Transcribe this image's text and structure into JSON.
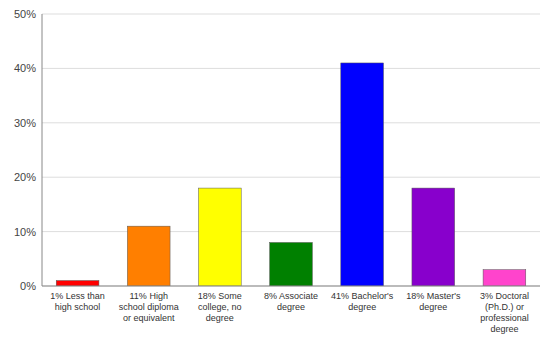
{
  "chart_data": {
    "type": "bar",
    "categories": [
      "1% Less than\nhigh school",
      "11% High\nschool diploma\nor equivalent",
      "18% Some\ncollege, no\ndegree",
      "8% Associate\ndegree",
      "41% Bachelor's\ndegree",
      "18% Master's\ndegree",
      "3% Doctoral\n(Ph.D.) or\nprofessional\ndegree"
    ],
    "values": [
      1,
      11,
      18,
      8,
      41,
      18,
      3
    ],
    "colors": [
      "#ff0000",
      "#ff7f00",
      "#ffff00",
      "#008000",
      "#0000ff",
      "#8800cc",
      "#ff44cc"
    ],
    "ylim": [
      0,
      50
    ],
    "yticks": [
      {
        "value": 0,
        "label": "0%"
      },
      {
        "value": 10,
        "label": "10%"
      },
      {
        "value": 20,
        "label": "20%"
      },
      {
        "value": 30,
        "label": "30%"
      },
      {
        "value": 40,
        "label": "40%"
      },
      {
        "value": 50,
        "label": "50%"
      }
    ],
    "grid": true
  }
}
